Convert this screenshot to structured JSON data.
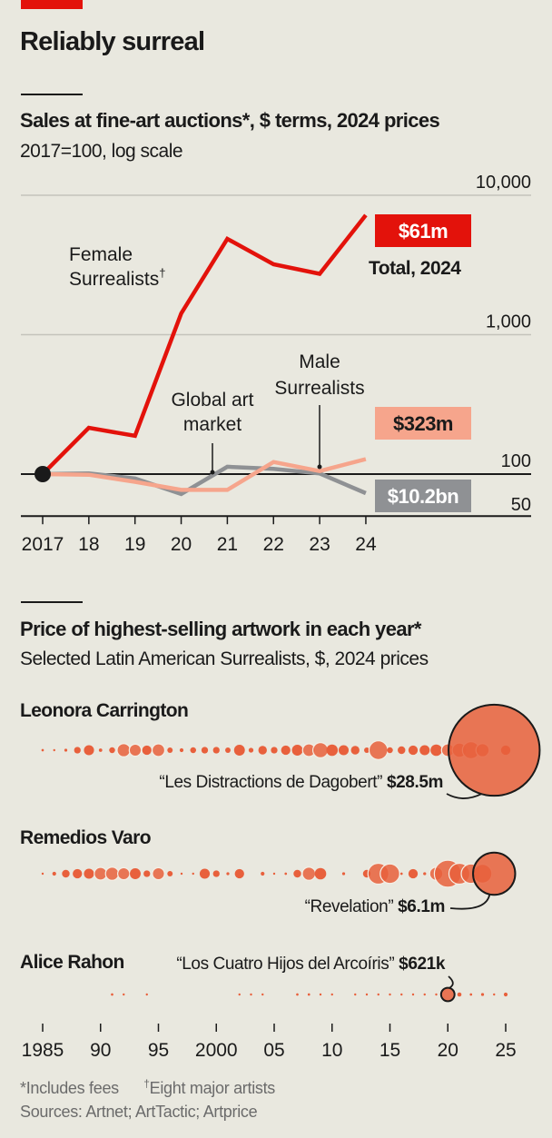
{
  "header": {
    "title": "Reliably surreal",
    "accent_color": "#e3120b"
  },
  "chart_data": [
    {
      "type": "line",
      "title": "Sales at fine-art auctions*, $ terms, 2024 prices",
      "subtitle": "2017=100, log scale",
      "scale": "log",
      "ylim": [
        50,
        10000
      ],
      "yticks": [
        {
          "value": 10000,
          "label": "10,000"
        },
        {
          "value": 1000,
          "label": "1,000"
        },
        {
          "value": 100,
          "label": "100"
        },
        {
          "value": 50,
          "label": "50"
        }
      ],
      "x": [
        2017,
        2018,
        2019,
        2020,
        2021,
        2022,
        2023,
        2024
      ],
      "xtick_labels": [
        "2017",
        "18",
        "19",
        "20",
        "21",
        "22",
        "23",
        "24"
      ],
      "series": [
        {
          "name": "Female Surrealists",
          "label_lines": [
            "Female",
            "Surrealists"
          ],
          "label_mark": "†",
          "color": "#e3120b",
          "values": [
            100,
            215,
            188,
            1420,
            4870,
            3200,
            2730,
            7200
          ],
          "end_badge": "$61m",
          "end_badge_text_color": "#ffffff",
          "end_note": "Total, 2024"
        },
        {
          "name": "Male Surrealists",
          "label_lines": [
            "Male",
            "Surrealists"
          ],
          "color": "#f6a58c",
          "values": [
            100,
            99,
            88,
            77,
            77,
            122,
            105,
            128
          ],
          "end_badge": "$323m",
          "end_badge_text_color": "#1a1a1a"
        },
        {
          "name": "Global art market",
          "label_lines": [
            "Global art",
            "market"
          ],
          "color": "#8f9194",
          "values": [
            100,
            101,
            93,
            72,
            113,
            109,
            101,
            73
          ],
          "end_badge": "$10.2bn",
          "end_badge_text_color": "#ffffff"
        }
      ],
      "start_marker": "2017 base point"
    },
    {
      "type": "scatter",
      "title": "Price of highest-selling artwork in each year*",
      "subtitle": "Selected Latin American Surrealists, $, 2024 prices",
      "encoding": "bubble area ~ price",
      "xlim": [
        1985,
        2025
      ],
      "xticks": [
        {
          "value": 1985,
          "label": "1985"
        },
        {
          "value": 1990,
          "label": "90"
        },
        {
          "value": 1995,
          "label": "95"
        },
        {
          "value": 2000,
          "label": "2000"
        },
        {
          "value": 2005,
          "label": "05"
        },
        {
          "value": 2010,
          "label": "10"
        },
        {
          "value": 2015,
          "label": "15"
        },
        {
          "value": 2020,
          "label": "20"
        },
        {
          "value": 2025,
          "label": "25"
        }
      ],
      "color": "#e8603c",
      "rows": [
        {
          "artist": "Leonora Carrington",
          "points": [
            [
              1985,
              0.02
            ],
            [
              1986,
              0.01
            ],
            [
              1987,
              0.03
            ],
            [
              1988,
              0.15
            ],
            [
              1989,
              0.35
            ],
            [
              1990,
              0.04
            ],
            [
              1991,
              0.12
            ],
            [
              1992,
              0.6
            ],
            [
              1993,
              0.5
            ],
            [
              1994,
              0.3
            ],
            [
              1995,
              0.55
            ],
            [
              1996,
              0.1
            ],
            [
              1997,
              0.05
            ],
            [
              1998,
              0.12
            ],
            [
              1999,
              0.15
            ],
            [
              2000,
              0.15
            ],
            [
              2001,
              0.1
            ],
            [
              2002,
              0.4
            ],
            [
              2003,
              0.08
            ],
            [
              2004,
              0.25
            ],
            [
              2005,
              0.15
            ],
            [
              2006,
              0.3
            ],
            [
              2007,
              0.4
            ],
            [
              2008,
              0.55
            ],
            [
              2009,
              0.8
            ],
            [
              2010,
              0.45
            ],
            [
              2011,
              0.35
            ],
            [
              2012,
              0.25
            ],
            [
              2013,
              0.1
            ],
            [
              2014,
              1.2
            ],
            [
              2015,
              0.12
            ],
            [
              2016,
              0.2
            ],
            [
              2017,
              0.3
            ],
            [
              2018,
              0.35
            ],
            [
              2019,
              0.45
            ],
            [
              2020,
              0.55
            ],
            [
              2021,
              0.7
            ],
            [
              2022,
              1.0
            ],
            [
              2023,
              0.6
            ],
            [
              2024,
              28.5
            ],
            [
              2025,
              0.3
            ]
          ],
          "highlight": {
            "year": 2024,
            "work": "“Les Distractions de Dagobert”",
            "price": "$28.5m"
          }
        },
        {
          "artist": "Remedios Varo",
          "points": [
            [
              1985,
              0.005
            ],
            [
              1986,
              0.05
            ],
            [
              1987,
              0.2
            ],
            [
              1988,
              0.3
            ],
            [
              1989,
              0.35
            ],
            [
              1990,
              0.55
            ],
            [
              1991,
              0.6
            ],
            [
              1992,
              0.5
            ],
            [
              1993,
              0.4
            ],
            [
              1994,
              0.15
            ],
            [
              1995,
              0.5
            ],
            [
              1996,
              0.1
            ],
            [
              1997,
              0.005
            ],
            [
              1998,
              0.005
            ],
            [
              1999,
              0.35
            ],
            [
              2000,
              0.15
            ],
            [
              2001,
              0.03
            ],
            [
              2002,
              0.3
            ],
            [
              2004,
              0.05
            ],
            [
              2005,
              0.01
            ],
            [
              2006,
              0.02
            ],
            [
              2007,
              0.2
            ],
            [
              2008,
              0.6
            ],
            [
              2009,
              0.45
            ],
            [
              2011,
              0.03
            ],
            [
              2013,
              0.2
            ],
            [
              2014,
              1.5
            ],
            [
              2015,
              1.3
            ],
            [
              2016,
              0.02
            ],
            [
              2017,
              0.3
            ],
            [
              2018,
              0.03
            ],
            [
              2019,
              0.6
            ],
            [
              2020,
              2.5
            ],
            [
              2021,
              1.5
            ],
            [
              2022,
              1.3
            ],
            [
              2023,
              1.2
            ],
            [
              2024,
              6.1
            ]
          ],
          "highlight": {
            "year": 2024,
            "work": "“Revelation”",
            "price": "$6.1m"
          }
        },
        {
          "artist": "Alice Rahon",
          "points": [
            [
              1991,
              0.02
            ],
            [
              1992,
              0.002
            ],
            [
              1994,
              0.002
            ],
            [
              2002,
              0.002
            ],
            [
              2003,
              0.002
            ],
            [
              2004,
              0.002
            ],
            [
              2007,
              0.02
            ],
            [
              2008,
              0.02
            ],
            [
              2009,
              0.005
            ],
            [
              2010,
              0.002
            ],
            [
              2012,
              0.01
            ],
            [
              2013,
              0.005
            ],
            [
              2014,
              0.008
            ],
            [
              2015,
              0.005
            ],
            [
              2016,
              0.008
            ],
            [
              2017,
              0.005
            ],
            [
              2018,
              0.003
            ],
            [
              2019,
              0.015
            ],
            [
              2020,
              0.621
            ],
            [
              2021,
              0.06
            ],
            [
              2022,
              0.02
            ],
            [
              2023,
              0.03
            ],
            [
              2024,
              0.015
            ],
            [
              2025,
              0.05
            ]
          ],
          "highlight": {
            "year": 2020,
            "work": "“Los Cuatro Hijos del Arcoíris”",
            "price": "$621k"
          }
        }
      ]
    }
  ],
  "footnotes": {
    "note1": "*Includes fees",
    "note2_mark": "†",
    "note2": "Eight major artists",
    "sources": "Sources: Artnet; ArtTactic; Artprice"
  }
}
